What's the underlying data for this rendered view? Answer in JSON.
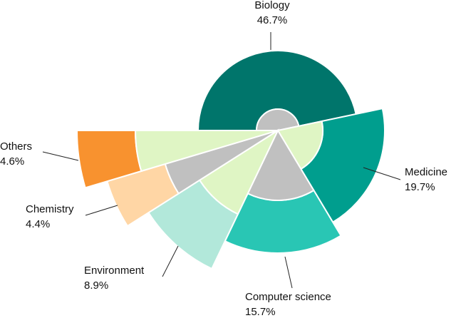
{
  "chart_data": {
    "type": "pie",
    "categories": [
      "Biology",
      "Medicine",
      "Computer science",
      "Environment",
      "Chemistry",
      "Others"
    ],
    "values": [
      46.7,
      19.7,
      15.7,
      8.9,
      4.4,
      4.6
    ],
    "value_labels": [
      "46.7%",
      "19.7%",
      "15.7%",
      "8.9%",
      "4.4%",
      "4.6%"
    ],
    "colors": [
      "#00756b",
      "#009e8e",
      "#29c6b4",
      "#b2e8da",
      "#ffd6a5",
      "#f8922f"
    ]
  }
}
